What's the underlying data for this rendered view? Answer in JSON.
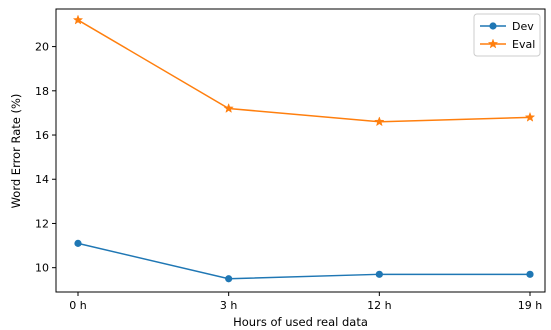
{
  "chart_data": {
    "type": "line",
    "title": "",
    "xlabel": "Hours of used real data",
    "ylabel": "Word Error Rate (%)",
    "categories": [
      "0 h",
      "3 h",
      "12 h",
      "19 h"
    ],
    "yticks": [
      "10",
      "12",
      "14",
      "16",
      "18",
      "20"
    ],
    "ylim": [
      8.9,
      21.7
    ],
    "grid": false,
    "legend_position": "top-right",
    "series": [
      {
        "name": "Dev",
        "values": [
          11.1,
          9.5,
          9.7,
          9.7
        ],
        "color": "#1f77b4",
        "marker": "circle"
      },
      {
        "name": "Eval",
        "values": [
          21.2,
          17.2,
          16.6,
          16.8
        ],
        "color": "#ff7f0e",
        "marker": "star"
      }
    ]
  }
}
